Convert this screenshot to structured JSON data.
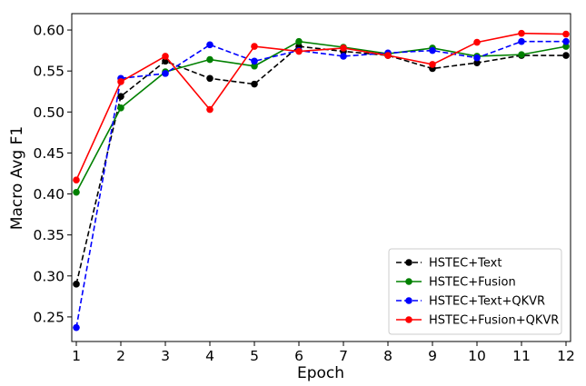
{
  "chart_data": {
    "type": "line",
    "xlabel": "Epoch",
    "ylabel": "Macro Avg F1",
    "xlim": [
      1,
      12
    ],
    "ylim": [
      0.22,
      0.62
    ],
    "x_ticks": [
      1,
      2,
      3,
      4,
      5,
      6,
      7,
      8,
      9,
      10,
      11,
      12
    ],
    "y_ticks": [
      0.25,
      0.3,
      0.35,
      0.4,
      0.45,
      0.5,
      0.55,
      0.6
    ],
    "legend_position": "bottom-right",
    "grid": false,
    "x": [
      1,
      2,
      3,
      4,
      5,
      6,
      7,
      8,
      9,
      10,
      11,
      12
    ],
    "series": [
      {
        "name": "HSTEC+Text",
        "color": "#000000",
        "dashed": true,
        "values": [
          0.29,
          0.519,
          0.562,
          0.541,
          0.534,
          0.58,
          0.574,
          0.569,
          0.553,
          0.56,
          0.569,
          0.569
        ]
      },
      {
        "name": "HSTEC+Fusion",
        "color": "#008000",
        "dashed": false,
        "values": [
          0.402,
          0.505,
          0.549,
          0.564,
          0.556,
          0.586,
          0.579,
          0.571,
          0.578,
          0.568,
          0.57,
          0.58
        ]
      },
      {
        "name": "HSTEC+Text+QKVR",
        "color": "#0000ff",
        "dashed": true,
        "values": [
          0.237,
          0.541,
          0.547,
          0.582,
          0.562,
          0.575,
          0.568,
          0.572,
          0.575,
          0.566,
          0.586,
          0.586
        ]
      },
      {
        "name": "HSTEC+Fusion+QKVR",
        "color": "#ff0000",
        "dashed": false,
        "values": [
          0.417,
          0.537,
          0.568,
          0.503,
          0.58,
          0.574,
          0.578,
          0.569,
          0.558,
          0.585,
          0.596,
          0.595
        ]
      }
    ]
  }
}
